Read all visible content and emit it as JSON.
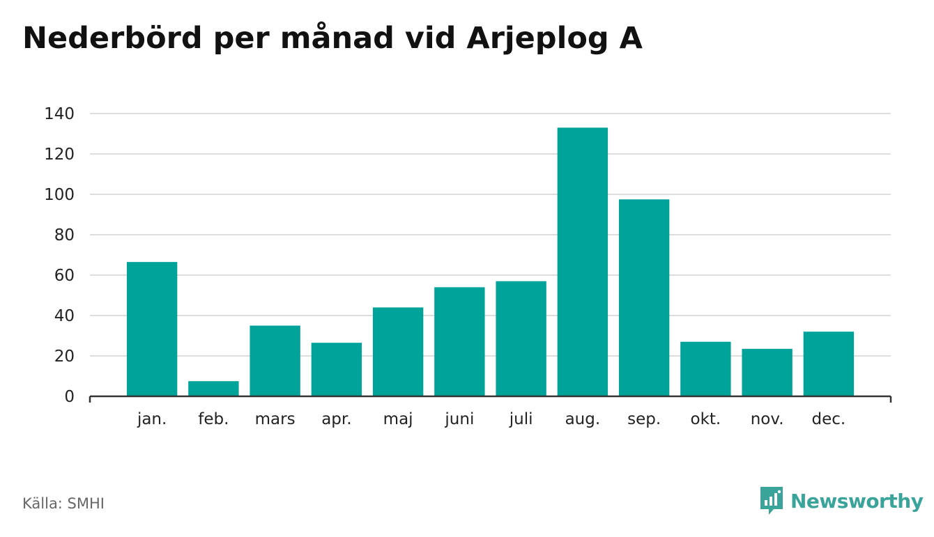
{
  "title": "Nederbörd per månad vid Arjeplog A",
  "source": "Källa: SMHI",
  "brand": {
    "name": "Newsworthy",
    "icon": "newsworthy-logo-icon",
    "color": "#3aa39a"
  },
  "colors": {
    "bar": "#00a39a",
    "grid": "#dddddd",
    "axis": "#333333"
  },
  "chart_data": {
    "type": "bar",
    "categories": [
      "jan.",
      "feb.",
      "mars",
      "apr.",
      "maj",
      "juni",
      "juli",
      "aug.",
      "sep.",
      "okt.",
      "nov.",
      "dec."
    ],
    "values": [
      66.5,
      7.5,
      35,
      26.5,
      44,
      54,
      57,
      133,
      97.5,
      27,
      23.5,
      32
    ],
    "ylim": [
      0,
      140
    ],
    "yticks": [
      0,
      20,
      40,
      60,
      80,
      100,
      120,
      140
    ],
    "title": "Nederbörd per månad vid Arjeplog A",
    "xlabel": "",
    "ylabel": "",
    "grid": true,
    "legend": "none"
  }
}
